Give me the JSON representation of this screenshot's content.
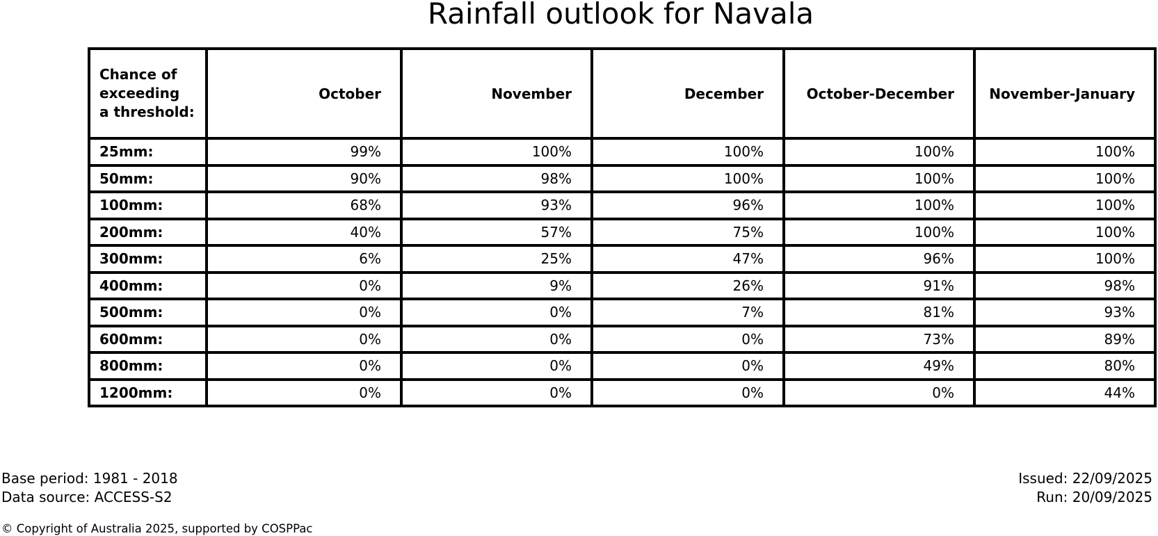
{
  "title": "Rainfall outlook for Navala",
  "table": {
    "corner_header": "Chance of\nexceeding\na threshold:",
    "columns": [
      "October",
      "November",
      "December",
      "October-December",
      "November-January"
    ],
    "rows": [
      {
        "threshold": "25mm:",
        "values": [
          "99%",
          "100%",
          "100%",
          "100%",
          "100%"
        ]
      },
      {
        "threshold": "50mm:",
        "values": [
          "90%",
          "98%",
          "100%",
          "100%",
          "100%"
        ]
      },
      {
        "threshold": "100mm:",
        "values": [
          "68%",
          "93%",
          "96%",
          "100%",
          "100%"
        ]
      },
      {
        "threshold": "200mm:",
        "values": [
          "40%",
          "57%",
          "75%",
          "100%",
          "100%"
        ]
      },
      {
        "threshold": "300mm:",
        "values": [
          "6%",
          "25%",
          "47%",
          "96%",
          "100%"
        ]
      },
      {
        "threshold": "400mm:",
        "values": [
          "0%",
          "9%",
          "26%",
          "91%",
          "98%"
        ]
      },
      {
        "threshold": "500mm:",
        "values": [
          "0%",
          "0%",
          "7%",
          "81%",
          "93%"
        ]
      },
      {
        "threshold": "600mm:",
        "values": [
          "0%",
          "0%",
          "0%",
          "73%",
          "89%"
        ]
      },
      {
        "threshold": "800mm:",
        "values": [
          "0%",
          "0%",
          "0%",
          "49%",
          "80%"
        ]
      },
      {
        "threshold": "1200mm:",
        "values": [
          "0%",
          "0%",
          "0%",
          "0%",
          "44%"
        ]
      }
    ]
  },
  "footer": {
    "base_period": "Base period: 1981 - 2018",
    "data_source": "Data source: ACCESS-S2",
    "issued": "Issued: 22/09/2025",
    "run": "Run: 20/09/2025",
    "copyright": "© Copyright of Australia 2025, supported by COSPPac"
  },
  "colors": {
    "background": "#ffffff",
    "text": "#000000",
    "border": "#000000"
  },
  "chart_data": {
    "type": "table",
    "title": "Rainfall outlook for Navala",
    "row_label_header": "Chance of exceeding a threshold:",
    "categories": [
      "25mm",
      "50mm",
      "100mm",
      "200mm",
      "300mm",
      "400mm",
      "500mm",
      "600mm",
      "800mm",
      "1200mm"
    ],
    "series": [
      {
        "name": "October",
        "values": [
          99,
          90,
          68,
          40,
          6,
          0,
          0,
          0,
          0,
          0
        ]
      },
      {
        "name": "November",
        "values": [
          100,
          98,
          93,
          57,
          25,
          9,
          0,
          0,
          0,
          0
        ]
      },
      {
        "name": "December",
        "values": [
          100,
          100,
          96,
          75,
          47,
          26,
          7,
          0,
          0,
          0
        ]
      },
      {
        "name": "October-December",
        "values": [
          100,
          100,
          100,
          100,
          96,
          91,
          81,
          73,
          49,
          0
        ]
      },
      {
        "name": "November-January",
        "values": [
          100,
          100,
          100,
          100,
          100,
          98,
          93,
          89,
          80,
          44
        ]
      }
    ],
    "unit": "%",
    "notes": [
      "Base period: 1981 - 2018",
      "Data source: ACCESS-S2",
      "Issued: 22/09/2025",
      "Run: 20/09/2025"
    ]
  }
}
